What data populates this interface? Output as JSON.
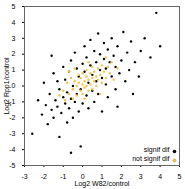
{
  "chart_data": {
    "type": "scatter",
    "x_label": "Log2 W82/control",
    "y_label": "Log2 Rpp1/control",
    "xlim": [
      -3,
      5
    ],
    "xticks": [
      -3,
      -2,
      -1,
      0,
      1,
      2,
      3,
      4,
      5
    ],
    "ylim": [
      -5,
      5
    ],
    "yticks": [
      -5,
      -4,
      -3,
      -2,
      -1,
      0,
      1,
      2,
      3,
      4,
      5
    ],
    "grid": false,
    "legend": "bottom-right",
    "series": [
      {
        "name": "signif dif",
        "color": "#000000",
        "marker": "circle",
        "x": [
          -2.6,
          -2.3,
          -2.1,
          -2.0,
          -1.9,
          -1.8,
          -1.7,
          -1.6,
          -1.5,
          -1.5,
          -1.4,
          -1.3,
          -1.3,
          -1.2,
          -1.2,
          -1.1,
          -1.0,
          -1.0,
          -0.9,
          -0.9,
          -0.8,
          -0.8,
          -0.7,
          -0.7,
          -0.6,
          -0.6,
          -0.5,
          -0.5,
          -0.4,
          -0.4,
          -0.3,
          -0.3,
          -0.2,
          -0.2,
          -0.1,
          -0.1,
          0.0,
          0.0,
          0.1,
          0.1,
          0.2,
          0.2,
          0.3,
          0.3,
          0.4,
          0.4,
          0.5,
          0.5,
          0.6,
          0.6,
          0.7,
          0.7,
          0.8,
          0.8,
          0.9,
          0.9,
          1.0,
          1.0,
          1.1,
          1.1,
          1.2,
          1.2,
          1.3,
          1.3,
          1.4,
          1.5,
          1.5,
          1.6,
          1.7,
          1.7,
          1.8,
          1.9,
          2.0,
          2.1,
          2.2,
          2.3,
          2.4,
          2.5,
          2.7,
          2.9,
          3.0,
          3.2,
          3.5,
          3.8,
          4.0,
          -0.6,
          1.8,
          -1.6,
          2.6
        ],
        "y": [
          -3.0,
          -0.9,
          -1.8,
          0.2,
          -1.2,
          -2.4,
          -0.5,
          -1.5,
          0.8,
          -2.0,
          -0.9,
          -1.3,
          0.3,
          -3.2,
          -0.2,
          -1.7,
          -0.7,
          1.2,
          -1.1,
          0.4,
          -2.3,
          -0.4,
          -1.4,
          0.9,
          -0.8,
          1.6,
          -2.0,
          0.0,
          -1.0,
          2.1,
          -0.5,
          1.1,
          -1.6,
          0.6,
          -3.8,
          -0.2,
          1.4,
          -1.1,
          2.5,
          0.9,
          -0.6,
          1.8,
          -1.4,
          0.2,
          2.9,
          1.3,
          -0.3,
          0.7,
          2.2,
          -1.0,
          1.5,
          0.3,
          3.3,
          -0.5,
          1.0,
          2.0,
          0.5,
          -1.6,
          1.7,
          2.7,
          0.1,
          1.1,
          2.3,
          -0.7,
          1.5,
          0.6,
          3.0,
          1.9,
          -0.2,
          1.2,
          2.5,
          0.8,
          1.6,
          3.4,
          0.3,
          2.1,
          1.0,
          2.8,
          1.5,
          0.6,
          2.2,
          3.0,
          1.8,
          4.6,
          2.5,
          -4.2,
          -1.3,
          1.9,
          -0.5
        ]
      },
      {
        "name": "not signif dif",
        "color": "#f2c14e",
        "marker": "circle",
        "x": [
          -1.2,
          -1.0,
          -0.9,
          -0.8,
          -0.7,
          -0.6,
          -0.5,
          -0.5,
          -0.4,
          -0.3,
          -0.3,
          -0.2,
          -0.2,
          -0.1,
          -0.1,
          0.0,
          0.0,
          0.0,
          0.1,
          0.1,
          0.2,
          0.2,
          0.2,
          0.3,
          0.3,
          0.4,
          0.4,
          0.5,
          0.5,
          0.5,
          0.6,
          0.6,
          0.7,
          0.7,
          0.8,
          0.8,
          0.9,
          1.0,
          1.0,
          1.1,
          1.2,
          1.3,
          1.4,
          1.5,
          1.6,
          1.8,
          -0.4,
          0.3,
          0.9,
          -0.7,
          1.2,
          0.1
        ],
        "y": [
          -0.6,
          -0.3,
          -0.9,
          0.2,
          -0.5,
          0.5,
          -0.2,
          -0.8,
          0.3,
          0.0,
          -0.6,
          0.7,
          0.2,
          -0.3,
          0.5,
          0.1,
          -0.5,
          0.8,
          0.3,
          -0.1,
          0.6,
          0.0,
          1.0,
          0.4,
          -0.3,
          0.8,
          0.1,
          0.5,
          1.2,
          -0.2,
          0.3,
          0.9,
          0.6,
          0.0,
          1.1,
          0.4,
          0.7,
          0.2,
          1.3,
          0.9,
          0.5,
          1.2,
          0.8,
          1.5,
          0.4,
          1.1,
          1.1,
          1.5,
          -0.5,
          0.9,
          1.8,
          -0.8
        ]
      }
    ]
  }
}
